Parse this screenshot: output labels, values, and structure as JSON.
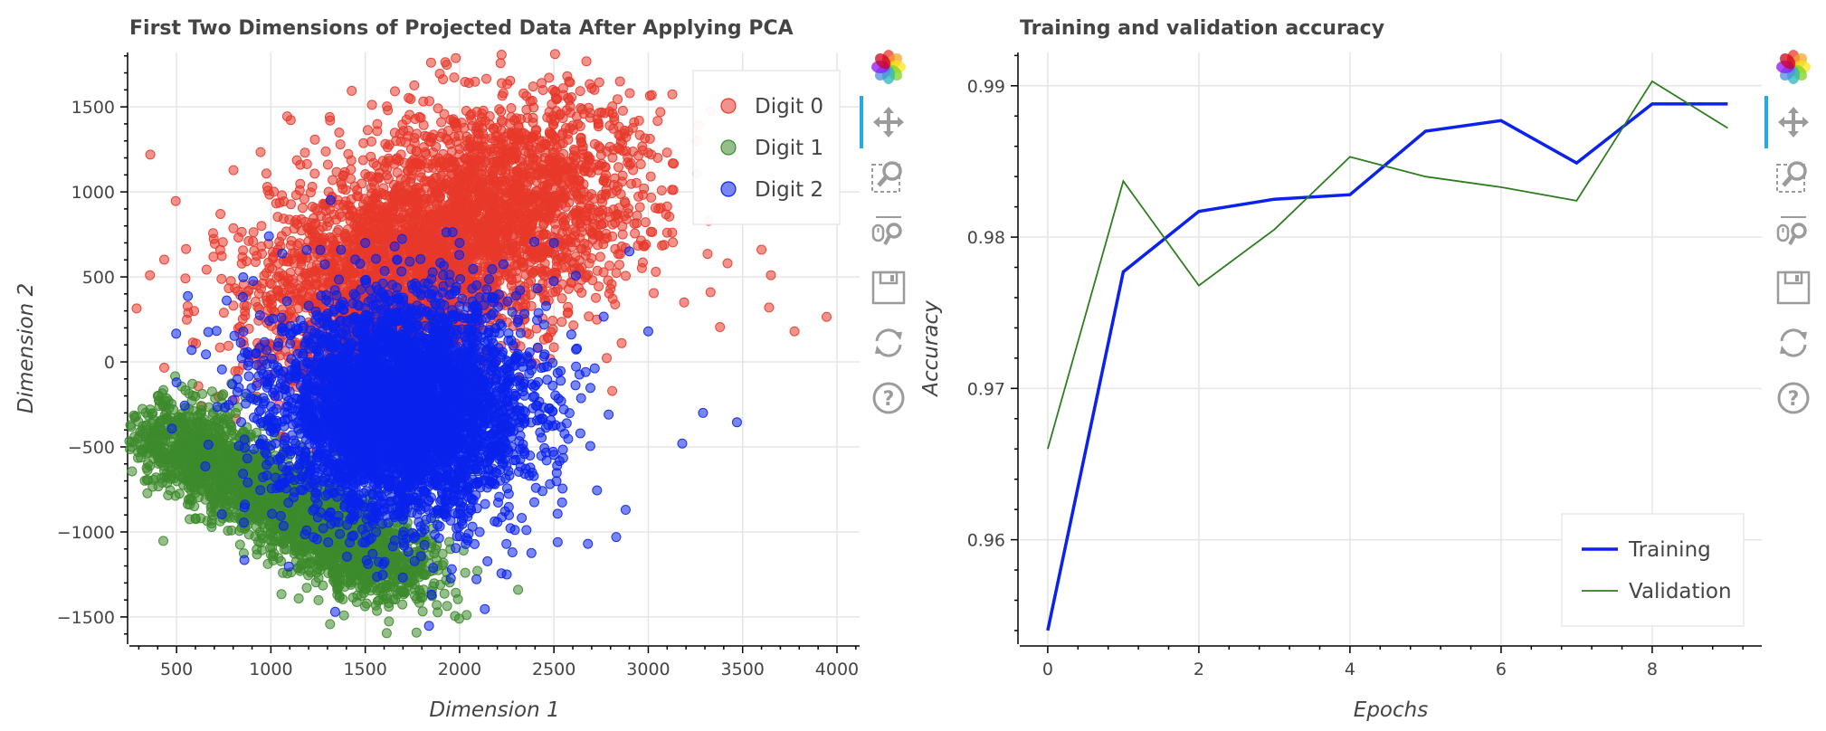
{
  "chart_data": [
    {
      "type": "scatter",
      "title": "First Two Dimensions of Projected Data After Applying PCA",
      "xlabel": "Dimension 1",
      "ylabel": "Dimension 2",
      "xlim": [
        250,
        4120
      ],
      "ylim": [
        -1660,
        1820
      ],
      "xticks": [
        500,
        1000,
        1500,
        2000,
        2500,
        3000,
        3500,
        4000
      ],
      "yticks": [
        -1500,
        -1000,
        -500,
        0,
        500,
        1000,
        1500
      ],
      "x_minor_step": 100,
      "y_minor_step": 100,
      "grid": true,
      "legend_position": "top-right",
      "series": [
        {
          "name": "Digit 0",
          "color": "#e8392a",
          "cluster": {
            "count": 3800,
            "cx": [
              1300,
              2500
            ],
            "cy": [
              250,
              1150
            ],
            "sx": 350,
            "sy": 300
          },
          "outliers": [
            [
              3945,
              265
            ],
            [
              3775,
              180
            ],
            [
              3640,
              320
            ],
            [
              3650,
              510
            ],
            [
              3600,
              660
            ],
            [
              3380,
              205
            ],
            [
              3330,
              410
            ],
            [
              3420,
              580
            ],
            [
              3190,
              350
            ],
            [
              3040,
              530
            ],
            [
              2880,
              670
            ],
            [
              2940,
              860
            ],
            [
              3100,
              760
            ],
            [
              2850,
              1650
            ],
            [
              2700,
              1610
            ],
            [
              2550,
              1570
            ],
            [
              1620,
              1480
            ],
            [
              3260,
              1300
            ],
            [
              3050,
              1200
            ],
            [
              1000,
              20
            ],
            [
              2800,
              430
            ]
          ]
        },
        {
          "name": "Digit 1",
          "color": "#3c8a2b",
          "cluster": {
            "count": 2500,
            "cx": [
              450,
              1700
            ],
            "cy": [
              -380,
              -1280
            ],
            "sx": 170,
            "sy": 120
          },
          "outliers": [
            [
              2310,
              -1340
            ],
            [
              2030,
              -1240
            ],
            [
              1810,
              -1160
            ],
            [
              600,
              -920
            ],
            [
              880,
              -820
            ],
            [
              360,
              -280
            ],
            [
              400,
              -200
            ]
          ]
        },
        {
          "name": "Digit 2",
          "color": "#0a22ec",
          "cluster": {
            "count": 4500,
            "cx": 1700,
            "cy": -280,
            "sx": 330,
            "sy": 320
          },
          "outliers": [
            [
              3470,
              -355
            ],
            [
              3290,
              -300
            ],
            [
              3180,
              -480
            ],
            [
              2640,
              -420
            ],
            [
              2880,
              -870
            ],
            [
              2830,
              -1030
            ],
            [
              2520,
              -1060
            ],
            [
              2280,
              -1120
            ],
            [
              2000,
              700
            ],
            [
              2500,
              700
            ],
            [
              2900,
              650
            ],
            [
              3000,
              180
            ],
            [
              2680,
              -1070
            ],
            [
              580,
              70
            ],
            [
              500,
              -120
            ],
            [
              1500,
              700
            ],
            [
              2250,
              -1250
            ],
            [
              2790,
              -310
            ]
          ]
        }
      ]
    },
    {
      "type": "line",
      "title": "Training and validation accuracy",
      "xlabel": "Epochs",
      "ylabel": "Accuracy",
      "xlim": [
        -0.37,
        9.45
      ],
      "ylim": [
        0.9531,
        0.9922
      ],
      "xticks": [
        0,
        2,
        4,
        6,
        8
      ],
      "yticks": [
        0.96,
        0.97,
        0.98,
        0.99
      ],
      "x_minor_step": 0.4,
      "y_minor_step": 0.002,
      "grid": true,
      "legend_position": "bottom-right",
      "x": [
        0,
        1,
        2,
        3,
        4,
        5,
        6,
        7,
        8,
        9
      ],
      "series": [
        {
          "name": "Training",
          "color": "#0a22ec",
          "line_width": 3.5,
          "values": [
            0.954,
            0.9777,
            0.9817,
            0.9825,
            0.9828,
            0.987,
            0.9877,
            0.9849,
            0.9888,
            0.9888
          ]
        },
        {
          "name": "Validation",
          "color": "#2e7d1f",
          "line_width": 1.8,
          "values": [
            0.966,
            0.9837,
            0.9768,
            0.9805,
            0.9853,
            0.984,
            0.9833,
            0.9824,
            0.9903,
            0.9872
          ]
        }
      ]
    }
  ],
  "toolbars": [
    {
      "tools": [
        "bokeh-logo-icon",
        "pan-icon",
        "box-zoom-icon",
        "wheel-zoom-icon",
        "save-icon",
        "reset-icon",
        "help-icon"
      ]
    },
    {
      "tools": [
        "bokeh-logo-icon",
        "pan-icon",
        "box-zoom-icon",
        "wheel-zoom-icon",
        "save-icon",
        "reset-icon",
        "help-icon"
      ]
    }
  ]
}
